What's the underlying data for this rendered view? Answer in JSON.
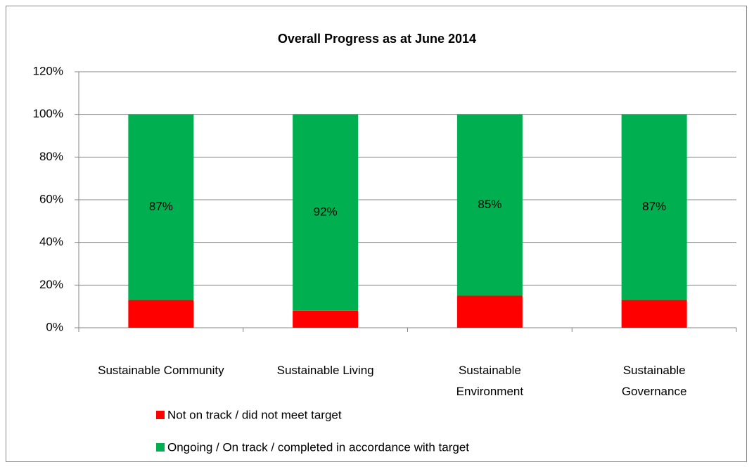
{
  "chart_data": {
    "type": "stacked_bar",
    "title": "Overall Progress as at June 2014",
    "categories": [
      "Sustainable Community",
      "Sustainable Living",
      "Sustainable Environment",
      "Sustainable Governance"
    ],
    "series": [
      {
        "name": "Not on track / did not meet target",
        "color": "#ff0000",
        "values": [
          13,
          8,
          15,
          13
        ]
      },
      {
        "name": "Ongoing / On track / completed in accordance with target",
        "color": "#00b050",
        "values": [
          87,
          92,
          85,
          87
        ],
        "value_labels": [
          "87%",
          "92%",
          "85%",
          "87%"
        ]
      }
    ],
    "ylim": [
      0,
      120
    ],
    "yticks": [
      {
        "value": 0,
        "label": "0%"
      },
      {
        "value": 20,
        "label": "20%"
      },
      {
        "value": 40,
        "label": "40%"
      },
      {
        "value": 60,
        "label": "60%"
      },
      {
        "value": 80,
        "label": "80%"
      },
      {
        "value": 100,
        "label": "100%"
      },
      {
        "value": 120,
        "label": "120%"
      }
    ],
    "grid": true,
    "legend": "bottom"
  }
}
